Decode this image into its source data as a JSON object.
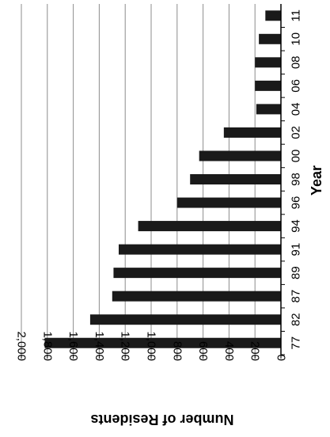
{
  "chart_data": {
    "type": "bar",
    "orientation": "horizontal-rotated",
    "categories": [
      "77",
      "82",
      "87",
      "89",
      "91",
      "94",
      "96",
      "98",
      "00",
      "02",
      "04",
      "06",
      "08",
      "10",
      "11"
    ],
    "values": [
      1820,
      1470,
      1300,
      1290,
      1250,
      1100,
      800,
      700,
      630,
      440,
      190,
      200,
      200,
      170,
      120
    ],
    "xlabel": "Year",
    "ylabel": "Number of Residents",
    "ylim": [
      0,
      2000
    ],
    "yticks": [
      "0",
      "200",
      "400",
      "600",
      "800",
      "1,000",
      "1,200",
      "1,400",
      "1,600",
      "1,800",
      "2,000"
    ],
    "grid": true,
    "bar_color": "#1a1a1a",
    "grid_color": "#8c8c8c"
  }
}
